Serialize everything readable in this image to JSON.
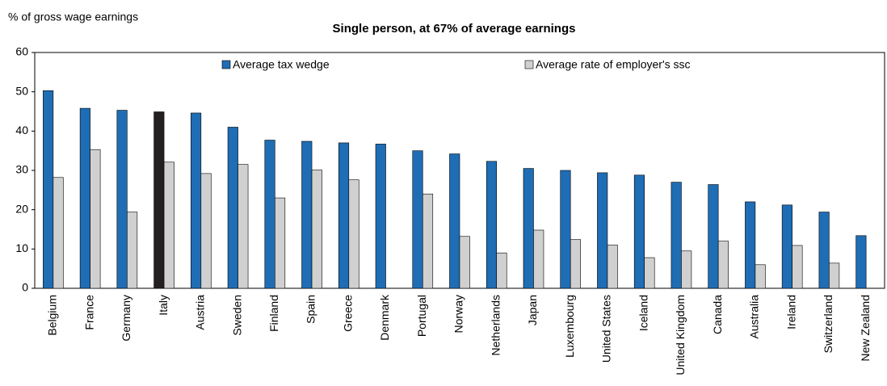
{
  "chart_data": {
    "type": "bar",
    "title": "Single person, at 67% of average earnings",
    "y_label": "% of gross wage earnings",
    "categories": [
      "Belgium",
      "France",
      "Germany",
      "Italy",
      "Austria",
      "Sweden",
      "Finland",
      "Spain",
      "Greece",
      "Denmark",
      "Portugal",
      "Norway",
      "Netherlands",
      "Japan",
      "Luxembourg",
      "United States",
      "Iceland",
      "United Kingdom",
      "Canada",
      "Australia",
      "Ireland",
      "Switzerland",
      "New Zealand"
    ],
    "series": [
      {
        "name": "Average tax wedge",
        "color": "#1f6db4",
        "highlight_index": 3,
        "highlight_color": "#231f20",
        "values": [
          50.3,
          45.8,
          45.3,
          44.9,
          44.6,
          41,
          37.7,
          37.4,
          37,
          36.7,
          35,
          34.2,
          32.3,
          30.5,
          30,
          29.4,
          28.8,
          27,
          26.4,
          22,
          21.2,
          19.4,
          13.4
        ]
      },
      {
        "name": "Average rate of employer's ssc",
        "color": "#d0d0d0",
        "values": [
          28.2,
          35.3,
          19.4,
          32.1,
          29.2,
          31.5,
          23,
          30.1,
          27.6,
          0,
          24,
          13.2,
          9,
          14.8,
          12.4,
          11,
          7.8,
          9.5,
          12,
          6,
          10.9,
          6.4,
          0
        ]
      }
    ],
    "ylim": [
      0,
      60
    ],
    "yticks": [
      0,
      10,
      20,
      30,
      40,
      50,
      60
    ],
    "grid": false,
    "legend": "top"
  }
}
